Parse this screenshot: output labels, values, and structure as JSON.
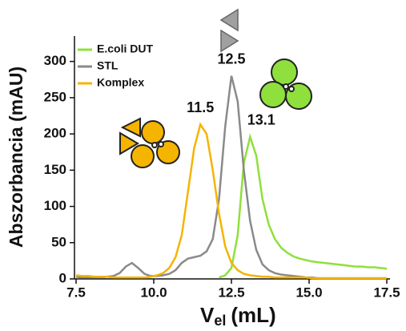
{
  "chart_data": {
    "type": "line",
    "ylabel": "Abszorbancia (mAU)",
    "xlabel": "V",
    "xlabel_sub": "el",
    "xlabel_unit": "(mL)",
    "x": [
      7.5,
      7.7,
      7.9,
      8.1,
      8.3,
      8.5,
      8.7,
      8.9,
      9.1,
      9.3,
      9.5,
      9.7,
      9.9,
      10.1,
      10.3,
      10.5,
      10.7,
      10.9,
      11.1,
      11.3,
      11.5,
      11.7,
      11.9,
      12.1,
      12.3,
      12.5,
      12.7,
      12.9,
      13.1,
      13.3,
      13.5,
      13.7,
      13.9,
      14.1,
      14.3,
      14.5,
      14.7,
      14.9,
      15.1,
      15.3,
      15.5,
      15.7,
      15.9,
      16.1,
      16.3,
      16.5,
      16.7,
      16.9,
      17.1,
      17.3,
      17.5
    ],
    "series": [
      {
        "name": "E.coli DUT",
        "color": "#8fe03c",
        "values": [
          null,
          null,
          null,
          null,
          null,
          null,
          null,
          null,
          null,
          null,
          null,
          null,
          null,
          null,
          null,
          null,
          null,
          null,
          null,
          null,
          null,
          null,
          null,
          2,
          5,
          15,
          60,
          160,
          196,
          170,
          110,
          75,
          55,
          43,
          36,
          31,
          28,
          26,
          24,
          23,
          22,
          21,
          20,
          19,
          18,
          17,
          17,
          16,
          16,
          15,
          14
        ]
      },
      {
        "name": "STL",
        "color": "#8a8a8a",
        "values": [
          3,
          2,
          2,
          2,
          2,
          3,
          4,
          8,
          17,
          22,
          15,
          7,
          4,
          4,
          5,
          7,
          12,
          22,
          28,
          30,
          32,
          38,
          55,
          110,
          210,
          280,
          245,
          150,
          80,
          40,
          20,
          12,
          8,
          6,
          5,
          4,
          3,
          2,
          2,
          1,
          1,
          1,
          1,
          1,
          1,
          1,
          1,
          1,
          1,
          1,
          1
        ]
      },
      {
        "name": "Komplex",
        "color": "#f5b400",
        "values": [
          5,
          4,
          4,
          3,
          3,
          3,
          2,
          2,
          2,
          2,
          2,
          2,
          3,
          5,
          8,
          15,
          30,
          60,
          120,
          180,
          213,
          200,
          150,
          90,
          45,
          22,
          12,
          7,
          5,
          4,
          3,
          3,
          2,
          2,
          2,
          2,
          2,
          2,
          1,
          1,
          1,
          1,
          1,
          1,
          1,
          1,
          1,
          1,
          1,
          1,
          1
        ]
      }
    ],
    "annotations": [
      {
        "text": "12.5",
        "x": 12.5,
        "y": 280
      },
      {
        "text": "11.5",
        "x": 11.5,
        "y": 213
      },
      {
        "text": "13.1",
        "x": 13.1,
        "y": 196
      }
    ],
    "xlim": [
      7.5,
      17.5
    ],
    "xticks": [
      {
        "value": 7.5,
        "label": "7.5"
      },
      {
        "value": 10,
        "label": "10.0"
      },
      {
        "value": 12.5,
        "label": "12.5"
      },
      {
        "value": 15,
        "label": "15.0"
      },
      {
        "value": 17.5,
        "label": "17.5"
      }
    ],
    "ylim": [
      0,
      335
    ],
    "yticks": [
      0,
      50,
      100,
      150,
      200,
      250,
      300
    ],
    "legend": "top-left",
    "grid": false
  }
}
